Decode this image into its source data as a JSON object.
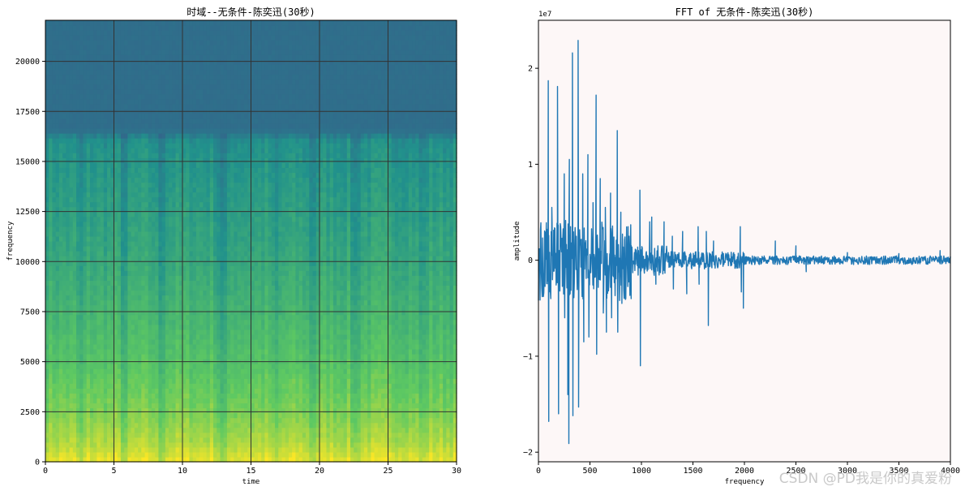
{
  "chart_data": [
    {
      "type": "heatmap",
      "title": "时域--无条件-陈奕迅(30秒)",
      "xlabel": "time",
      "ylabel": "frequency",
      "xlim": [
        0,
        30
      ],
      "ylim": [
        0,
        22050
      ],
      "x_ticks": [
        0,
        5,
        10,
        15,
        20,
        25,
        30
      ],
      "x_tick_labels": [
        "0",
        "5",
        "10",
        "15",
        "20",
        "25",
        "30"
      ],
      "y_ticks": [
        0,
        2500,
        5000,
        7500,
        10000,
        12500,
        15000,
        17500,
        20000
      ],
      "y_tick_labels": [
        "0",
        "2500",
        "5000",
        "7500",
        "10000",
        "12500",
        "15000",
        "17500",
        "20000"
      ],
      "grid": true,
      "colormap": "viridis",
      "energy_by_frequency": [
        {
          "frequency": 0,
          "level": 0.97
        },
        {
          "frequency": 1000,
          "level": 0.88
        },
        {
          "frequency": 2500,
          "level": 0.8
        },
        {
          "frequency": 5000,
          "level": 0.72
        },
        {
          "frequency": 7500,
          "level": 0.66
        },
        {
          "frequency": 10000,
          "level": 0.6
        },
        {
          "frequency": 12500,
          "level": 0.56
        },
        {
          "frequency": 15000,
          "level": 0.52
        },
        {
          "frequency": 16000,
          "level": 0.5
        },
        {
          "frequency": 16600,
          "level": 0.36
        },
        {
          "frequency": 22050,
          "level": 0.36
        }
      ],
      "quiet_time_bands": [
        2.6,
        5.8,
        8.4,
        12.8,
        13.2,
        16.8,
        19.5,
        22.6,
        27.5
      ]
    },
    {
      "type": "line",
      "title": "FFT of 无条件-陈奕迅(30秒)",
      "xlabel": "frequency",
      "ylabel": "amplitude",
      "xlim": [
        0,
        4000
      ],
      "ylim": [
        -2.1,
        2.5
      ],
      "y_scale_label": "1e7",
      "x_ticks": [
        0,
        500,
        1000,
        1500,
        2000,
        2500,
        3000,
        3500,
        4000
      ],
      "x_tick_labels": [
        "0",
        "500",
        "1000",
        "1500",
        "2000",
        "2500",
        "3000",
        "3500",
        "4000"
      ],
      "y_ticks": [
        -2,
        -1,
        0,
        1,
        2
      ],
      "y_tick_labels": [
        "−2",
        "−1",
        "0",
        "1",
        "2"
      ],
      "grid": false,
      "series_color": "#1f77b4",
      "background_color": "#fdf7f7",
      "series": [
        {
          "peaks": [
            {
              "x": 95,
              "y": 1.87
            },
            {
              "x": 100,
              "y": -1.68
            },
            {
              "x": 130,
              "y": 0.55
            },
            {
              "x": 185,
              "y": 1.81
            },
            {
              "x": 195,
              "y": -1.6
            },
            {
              "x": 250,
              "y": 0.9
            },
            {
              "x": 255,
              "y": -0.6
            },
            {
              "x": 285,
              "y": -1.4
            },
            {
              "x": 295,
              "y": -1.91
            },
            {
              "x": 300,
              "y": 1.05
            },
            {
              "x": 330,
              "y": 2.16
            },
            {
              "x": 335,
              "y": -1.62
            },
            {
              "x": 385,
              "y": 2.29
            },
            {
              "x": 390,
              "y": -1.53
            },
            {
              "x": 430,
              "y": 0.9
            },
            {
              "x": 440,
              "y": -0.85
            },
            {
              "x": 480,
              "y": 1.1
            },
            {
              "x": 490,
              "y": -0.8
            },
            {
              "x": 530,
              "y": 0.6
            },
            {
              "x": 560,
              "y": 1.72
            },
            {
              "x": 565,
              "y": -0.98
            },
            {
              "x": 600,
              "y": 0.85
            },
            {
              "x": 630,
              "y": -0.55
            },
            {
              "x": 650,
              "y": 0.55
            },
            {
              "x": 660,
              "y": -0.75
            },
            {
              "x": 700,
              "y": 0.7
            },
            {
              "x": 710,
              "y": -0.6
            },
            {
              "x": 765,
              "y": 1.35
            },
            {
              "x": 770,
              "y": -0.75
            },
            {
              "x": 800,
              "y": 0.5
            },
            {
              "x": 810,
              "y": -0.45
            },
            {
              "x": 870,
              "y": 0.35
            },
            {
              "x": 900,
              "y": -0.4
            },
            {
              "x": 985,
              "y": 0.73
            },
            {
              "x": 990,
              "y": -1.1
            },
            {
              "x": 1080,
              "y": 0.4
            },
            {
              "x": 1100,
              "y": 0.45
            },
            {
              "x": 1140,
              "y": -0.25
            },
            {
              "x": 1220,
              "y": 0.4
            },
            {
              "x": 1300,
              "y": 0.25
            },
            {
              "x": 1310,
              "y": -0.3
            },
            {
              "x": 1400,
              "y": 0.3
            },
            {
              "x": 1440,
              "y": -0.35
            },
            {
              "x": 1550,
              "y": 0.35
            },
            {
              "x": 1560,
              "y": -0.25
            },
            {
              "x": 1630,
              "y": 0.3
            },
            {
              "x": 1650,
              "y": -0.68
            },
            {
              "x": 1700,
              "y": 0.2
            },
            {
              "x": 1960,
              "y": 0.35
            },
            {
              "x": 1970,
              "y": -0.33
            },
            {
              "x": 1990,
              "y": -0.5
            },
            {
              "x": 2300,
              "y": 0.2
            },
            {
              "x": 2500,
              "y": 0.15
            },
            {
              "x": 2600,
              "y": -0.12
            },
            {
              "x": 3000,
              "y": 0.08
            },
            {
              "x": 3500,
              "y": 0.07
            },
            {
              "x": 3900,
              "y": 0.1
            }
          ]
        }
      ]
    }
  ],
  "watermark": "CSDN @PD我是你的真爱粉"
}
